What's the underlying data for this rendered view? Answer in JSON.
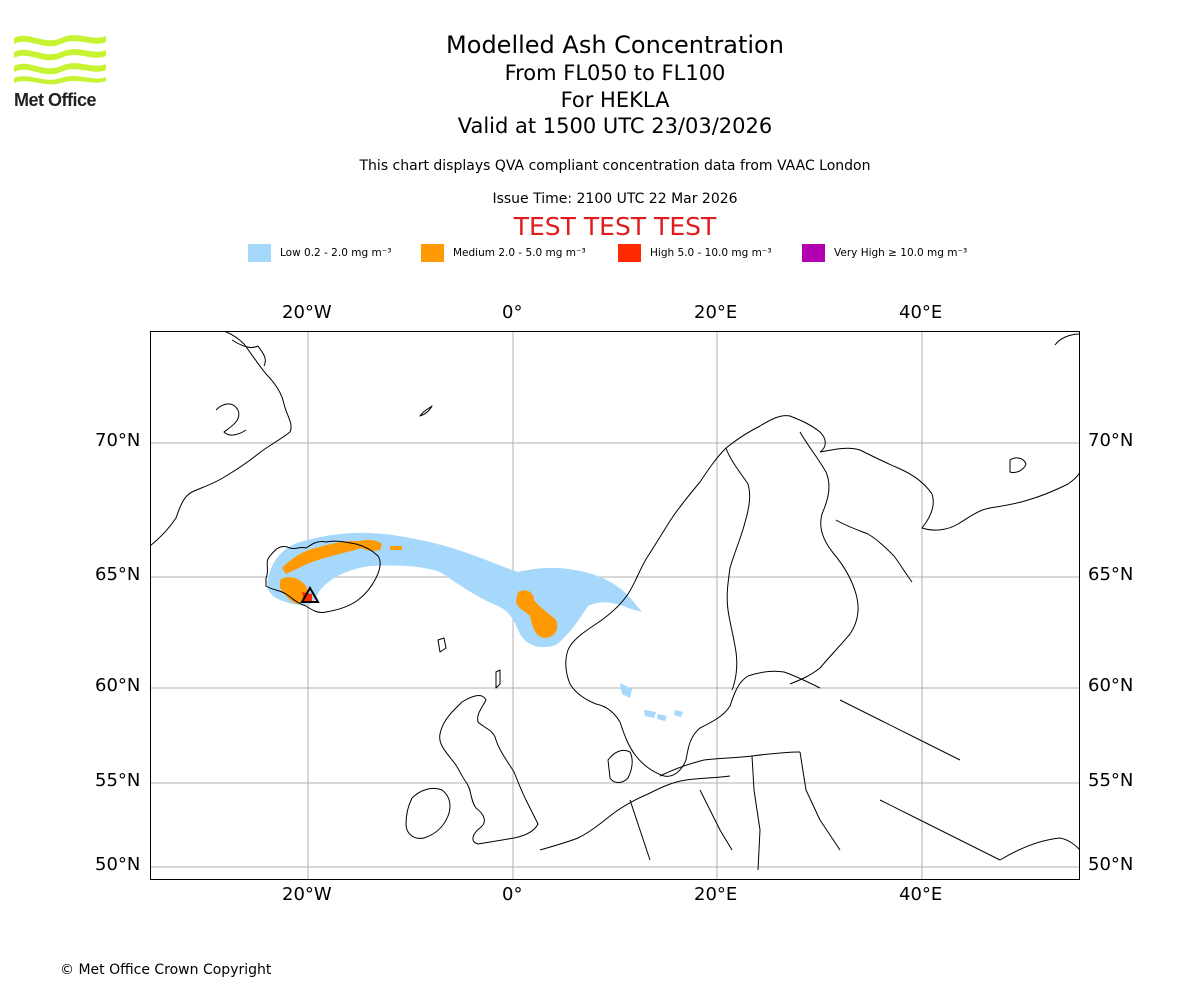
{
  "logo": {
    "text": "Met Office",
    "color": "#c6f432"
  },
  "header": {
    "title": "Modelled Ash Concentration",
    "levels": "From FL050 to FL100",
    "volcano": "For HEKLA",
    "valid": "Valid at 1500 UTC 23/03/2026",
    "description": "This chart displays QVA compliant concentration data from VAAC London",
    "issue_time": "Issue Time: 2100 UTC 22 Mar 2026",
    "test_banner": "TEST TEST TEST"
  },
  "legend": [
    {
      "label": "Low 0.2 - 2.0 mg m⁻³",
      "color": "#a6d8fb"
    },
    {
      "label": "Medium 2.0 - 5.0 mg m⁻³",
      "color": "#ff9a03"
    },
    {
      "label": "High 5.0 - 10.0 mg m⁻³",
      "color": "#ff2a00"
    },
    {
      "label": "Very High ≥ 10.0 mg m⁻³",
      "color": "#b000b0"
    }
  ],
  "axes": {
    "lon_labels": [
      "20°W",
      "0°",
      "20°E",
      "40°E"
    ],
    "lat_labels": [
      "70°N",
      "65°N",
      "60°N",
      "55°N",
      "50°N"
    ]
  },
  "footer": {
    "copyright": "© Met Office Crown Copyright"
  }
}
